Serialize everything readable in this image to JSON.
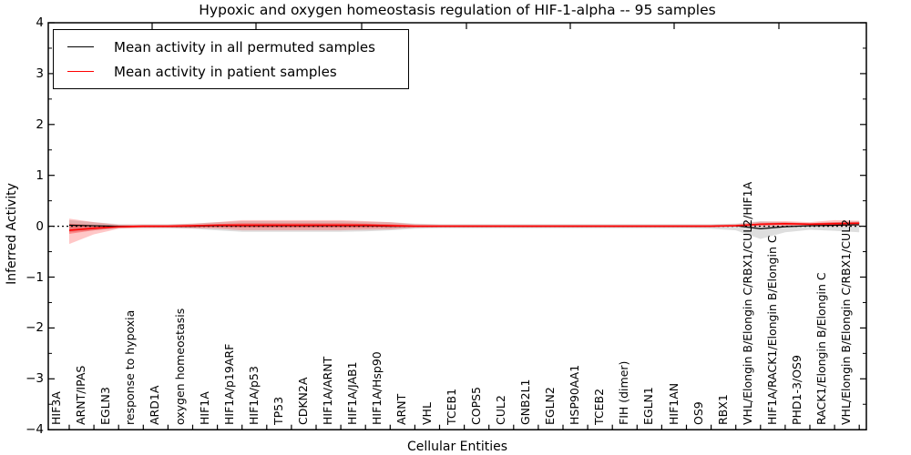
{
  "figure": {
    "title": "Hypoxic and oxygen homeostasis regulation of HIF-1-alpha -- 95 samples",
    "xlabel": "Cellular Entities",
    "ylabel": "Inferred Activity"
  },
  "legend": {
    "items": [
      {
        "label": "Mean activity in all permuted samples",
        "color": "#000000"
      },
      {
        "label": "Mean activity in patient samples",
        "color": "#ff0000"
      }
    ]
  },
  "chart_data": {
    "type": "line",
    "title": "Hypoxic and oxygen homeostasis regulation of HIF-1-alpha -- 95 samples",
    "xlabel": "Cellular Entities",
    "ylabel": "Inferred Activity",
    "ylim": [
      -4,
      4
    ],
    "ytick_labels": [
      "4",
      "3",
      "2",
      "1",
      "0",
      "−1",
      "−2",
      "−3",
      "−4"
    ],
    "ytick_values": [
      4,
      3,
      2,
      1,
      0,
      -1,
      -2,
      -3,
      -4
    ],
    "grid": false,
    "legend_position": "upper left",
    "categories": [
      "HIF3A",
      "ARNT/IPAS",
      "EGLN3",
      "response to hypoxia",
      "ARD1A",
      "oxygen homeostasis",
      "HIF1A",
      "HIF1A/p19ARF",
      "HIF1A/p53",
      "TP53",
      "CDKN2A",
      "HIF1A/ARNT",
      "HIF1A/JAB1",
      "HIF1A/Hsp90",
      "ARNT",
      "VHL",
      "TCEB1",
      "COPS5",
      "CUL2",
      "GNB2L1",
      "EGLN2",
      "HSP90AA1",
      "TCEB2",
      "FIH (dimer)",
      "EGLN1",
      "HIF1AN",
      "OS9",
      "RBX1",
      "VHL/Elongin B/Elongin C/RBX1/CUL2/HIF1A",
      "HIF1A/RACK1/Elongin B/Elongin C",
      "PHD1-3/OS9",
      "RACK1/Elongin B/Elongin C",
      "VHL/Elongin B/Elongin C/RBX1/CUL2"
    ],
    "series": [
      {
        "name": "Mean activity in all permuted samples",
        "color": "#000000",
        "style": "solid",
        "values": [
          0.02,
          0.01,
          0.0,
          0.0,
          0.0,
          0.0,
          0.01,
          0.01,
          0.01,
          0.01,
          0.01,
          0.01,
          0.01,
          0.0,
          0.0,
          0.0,
          0.0,
          0.0,
          0.0,
          0.0,
          0.0,
          0.0,
          0.0,
          0.0,
          0.0,
          0.0,
          0.0,
          0.01,
          -0.05,
          -0.01,
          0.01,
          0.02,
          0.03
        ]
      },
      {
        "name": "Mean activity in patient samples",
        "color": "#ff0000",
        "style": "solid",
        "values": [
          -0.08,
          -0.04,
          -0.01,
          0.0,
          0.0,
          0.01,
          0.02,
          0.02,
          0.02,
          0.02,
          0.02,
          0.02,
          0.02,
          0.01,
          0.0,
          0.0,
          0.0,
          0.0,
          0.0,
          0.0,
          0.0,
          0.0,
          0.0,
          0.0,
          0.0,
          0.0,
          0.0,
          0.01,
          0.04,
          0.05,
          0.04,
          0.05,
          0.06
        ]
      }
    ],
    "bands": [
      {
        "name": "permuted-confidence-band",
        "color": "rgba(0,0,0,0.13)",
        "upper": [
          0.12,
          0.08,
          0.04,
          0.04,
          0.04,
          0.05,
          0.08,
          0.1,
          0.1,
          0.1,
          0.1,
          0.1,
          0.09,
          0.08,
          0.05,
          0.04,
          0.04,
          0.04,
          0.04,
          0.04,
          0.04,
          0.04,
          0.04,
          0.04,
          0.04,
          0.04,
          0.04,
          0.05,
          0.1,
          0.08,
          0.06,
          0.08,
          0.1
        ],
        "lower": [
          -0.12,
          -0.08,
          -0.04,
          -0.04,
          -0.04,
          -0.05,
          -0.08,
          -0.11,
          -0.11,
          -0.11,
          -0.11,
          -0.11,
          -0.1,
          -0.08,
          -0.05,
          -0.04,
          -0.04,
          -0.04,
          -0.04,
          -0.04,
          -0.04,
          -0.04,
          -0.04,
          -0.04,
          -0.04,
          -0.04,
          -0.05,
          -0.08,
          -0.25,
          -0.12,
          -0.07,
          -0.09,
          -0.12
        ]
      },
      {
        "name": "patient-confidence-band-outer",
        "color": "rgba(255,0,0,0.22)",
        "upper": [
          0.15,
          0.08,
          0.03,
          0.03,
          0.03,
          0.05,
          0.08,
          0.12,
          0.12,
          0.12,
          0.12,
          0.12,
          0.1,
          0.08,
          0.04,
          0.03,
          0.03,
          0.03,
          0.03,
          0.03,
          0.03,
          0.03,
          0.03,
          0.03,
          0.03,
          0.03,
          0.03,
          0.04,
          0.09,
          0.1,
          0.08,
          0.12,
          0.11
        ],
        "lower": [
          -0.35,
          -0.16,
          -0.05,
          -0.03,
          -0.03,
          -0.04,
          -0.05,
          -0.08,
          -0.08,
          -0.08,
          -0.08,
          -0.08,
          -0.07,
          -0.06,
          -0.03,
          -0.02,
          -0.02,
          -0.02,
          -0.02,
          -0.02,
          -0.02,
          -0.02,
          -0.02,
          -0.02,
          -0.02,
          -0.02,
          -0.02,
          -0.01,
          -0.01,
          0.0,
          0.0,
          -0.01,
          0.01
        ]
      },
      {
        "name": "patient-confidence-band-inner",
        "color": "rgba(255,0,0,0.30)",
        "upper": [
          0.05,
          0.02,
          0.01,
          0.01,
          0.01,
          0.02,
          0.04,
          0.06,
          0.06,
          0.06,
          0.06,
          0.06,
          0.05,
          0.04,
          0.02,
          0.01,
          0.01,
          0.01,
          0.01,
          0.01,
          0.01,
          0.01,
          0.01,
          0.01,
          0.01,
          0.01,
          0.01,
          0.02,
          0.06,
          0.07,
          0.06,
          0.08,
          0.08
        ],
        "lower": [
          -0.15,
          -0.08,
          -0.03,
          -0.02,
          -0.02,
          -0.02,
          -0.02,
          -0.03,
          -0.03,
          -0.03,
          -0.03,
          -0.03,
          -0.03,
          -0.02,
          -0.01,
          -0.01,
          -0.01,
          -0.01,
          -0.01,
          -0.01,
          -0.01,
          -0.01,
          -0.01,
          -0.01,
          -0.01,
          -0.01,
          -0.01,
          0.0,
          0.02,
          0.03,
          0.02,
          0.02,
          0.04
        ]
      }
    ],
    "zero_line": {
      "style": "dotted",
      "color": "#000000",
      "value": 0
    }
  }
}
